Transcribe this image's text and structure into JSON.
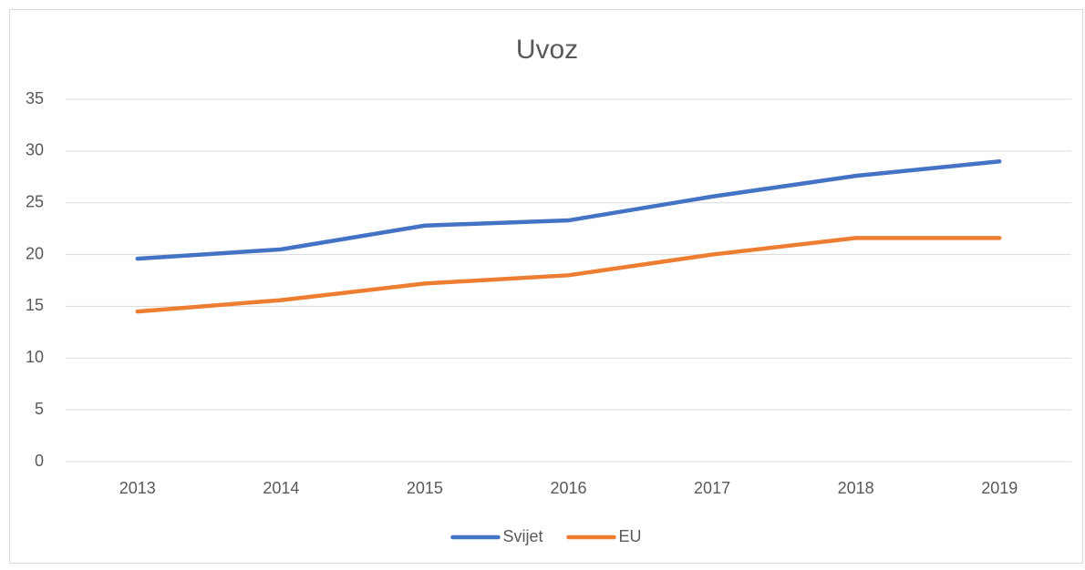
{
  "chart_data": {
    "type": "line",
    "title": "Uvoz",
    "categories": [
      "2013",
      "2014",
      "2015",
      "2016",
      "2017",
      "2018",
      "2019"
    ],
    "series": [
      {
        "name": "Svijet",
        "color": "#4472c4",
        "values": [
          19.6,
          20.5,
          22.8,
          23.3,
          25.6,
          27.6,
          29.0
        ]
      },
      {
        "name": "EU",
        "color": "#ed7d31",
        "values": [
          14.5,
          15.6,
          17.2,
          18.0,
          20.0,
          21.6,
          21.6
        ]
      }
    ],
    "ylim": [
      0,
      35
    ],
    "yticks": [
      0,
      5,
      10,
      15,
      20,
      25,
      30,
      35
    ],
    "grid": true,
    "legend": "bottom"
  }
}
